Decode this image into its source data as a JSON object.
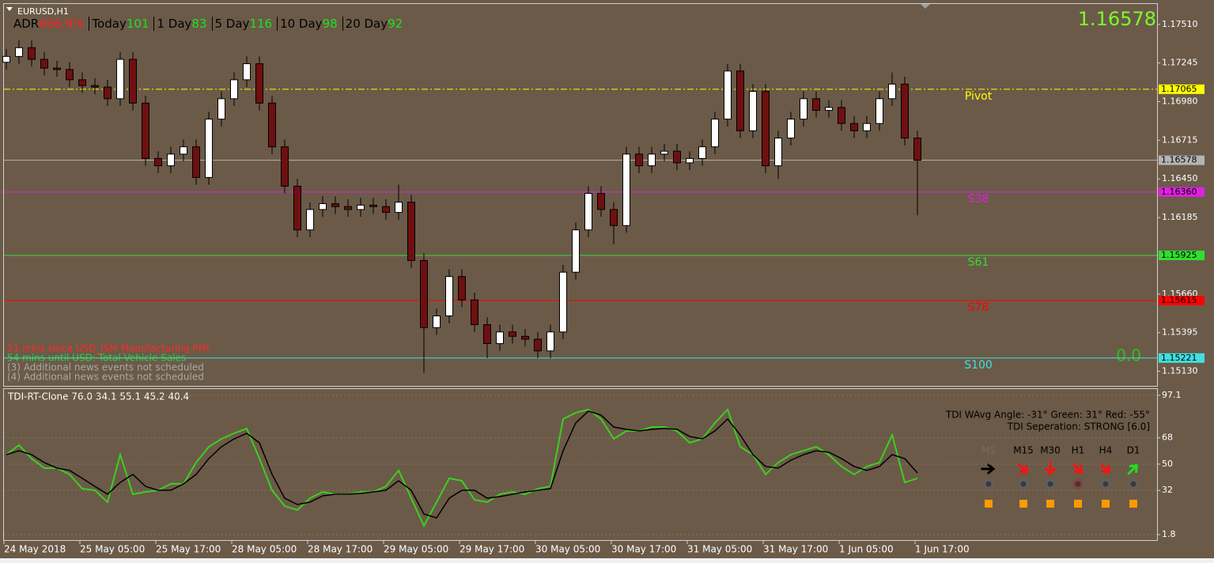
{
  "symbol": "EURUSD,H1",
  "adr": [
    {
      "label": "ADR",
      "value": 606.9,
      "value_label": "606.9%",
      "color": "#ff2020"
    },
    {
      "label": "Today",
      "value": 101,
      "color": "#20e020"
    },
    {
      "label": "1 Day",
      "value": 83,
      "color": "#20e020"
    },
    {
      "label": "5 Day",
      "value": 116,
      "color": "#20e020"
    },
    {
      "label": "10 Day",
      "value": 98,
      "color": "#20e020"
    },
    {
      "label": "20 Day",
      "value": 92,
      "color": "#20e020"
    }
  ],
  "price_display": "1.16578",
  "zero_display": "0.0",
  "news": [
    {
      "text": "21 mins since USD_ISM Manufacturing PMI",
      "color": "#ff2a2a"
    },
    {
      "text": "54 mins until USD: Total Vehicle Sales",
      "color": "#30d030"
    },
    {
      "text": "(3)  Additional news events not scheduled",
      "color": "#a8a8a8"
    },
    {
      "text": "(4)  Additional news events not scheduled",
      "color": "#a8a8a8"
    }
  ],
  "tdi_info": [
    "TDI WAvg Angle: -31°  Green: 31°  Red: -55°",
    "TDI Seperation: STRONG [6.0]"
  ],
  "timeframes": [
    {
      "label": "M5",
      "color": "#7a6a58"
    },
    {
      "label": "M15",
      "color": "#000000"
    },
    {
      "label": "M30",
      "color": "#000000"
    },
    {
      "label": "H1",
      "color": "#000000"
    },
    {
      "label": "H4",
      "color": "#000000"
    },
    {
      "label": "D1",
      "color": "#000000"
    }
  ],
  "chart_data": [
    {
      "type": "candlestick",
      "up_color": "#ffffff",
      "down_color": "#6e1010",
      "open": [
        1.1725,
        1.1729,
        1.1735,
        1.1727,
        1.1721,
        1.172,
        1.1713,
        1.1709,
        1.1708,
        1.17,
        1.1727,
        1.1697,
        1.1659,
        1.1654,
        1.1662,
        1.1667,
        1.1646,
        1.1686,
        1.17,
        1.1713,
        1.1724,
        1.1697,
        1.1667,
        1.164,
        1.161,
        1.1624,
        1.1628,
        1.1626,
        1.1624,
        1.1627,
        1.1626,
        1.1622,
        1.1629,
        1.1589,
        1.1543,
        1.1551,
        1.1578,
        1.1562,
        1.1545,
        1.1532,
        1.154,
        1.1537,
        1.1535,
        1.1527,
        1.154,
        1.1581,
        1.161,
        1.1635,
        1.1624,
        1.1613,
        1.1662,
        1.1654,
        1.1662,
        1.1664,
        1.1656,
        1.1659,
        1.1667,
        1.1686,
        1.1719,
        1.1678,
        1.1705,
        1.1654,
        1.1673,
        1.1686,
        1.17,
        1.1692,
        1.1694,
        1.1683,
        1.1678,
        1.1683,
        1.17,
        1.171,
        1.1673
      ],
      "high": [
        1.1734,
        1.174,
        1.174,
        1.1732,
        1.1726,
        1.1725,
        1.1718,
        1.1714,
        1.1713,
        1.1732,
        1.1732,
        1.1702,
        1.1664,
        1.1667,
        1.1672,
        1.1672,
        1.1691,
        1.1705,
        1.1718,
        1.1729,
        1.1729,
        1.1702,
        1.1672,
        1.1645,
        1.1629,
        1.1633,
        1.1633,
        1.1631,
        1.1632,
        1.1632,
        1.1631,
        1.1641,
        1.1634,
        1.1594,
        1.1556,
        1.1583,
        1.1583,
        1.1567,
        1.155,
        1.1545,
        1.1545,
        1.1542,
        1.154,
        1.1545,
        1.1586,
        1.1615,
        1.164,
        1.164,
        1.1629,
        1.1667,
        1.1667,
        1.1667,
        1.1669,
        1.1669,
        1.1664,
        1.1672,
        1.1691,
        1.1724,
        1.1724,
        1.171,
        1.171,
        1.1678,
        1.1691,
        1.1705,
        1.1705,
        1.1699,
        1.1699,
        1.1688,
        1.1688,
        1.1705,
        1.1718,
        1.1715,
        1.1678
      ],
      "low": [
        1.172,
        1.1724,
        1.1722,
        1.1716,
        1.1715,
        1.1708,
        1.1704,
        1.1703,
        1.1695,
        1.1695,
        1.1692,
        1.1654,
        1.1649,
        1.1649,
        1.1657,
        1.1641,
        1.1641,
        1.1681,
        1.1695,
        1.1708,
        1.1692,
        1.1662,
        1.1635,
        1.1605,
        1.1605,
        1.1619,
        1.1621,
        1.1619,
        1.1619,
        1.1621,
        1.1617,
        1.1617,
        1.1584,
        1.1512,
        1.1538,
        1.1546,
        1.1557,
        1.154,
        1.1522,
        1.1527,
        1.1532,
        1.153,
        1.1522,
        1.1522,
        1.1535,
        1.1576,
        1.1605,
        1.1619,
        1.16,
        1.1608,
        1.1649,
        1.1649,
        1.1657,
        1.1651,
        1.1651,
        1.1654,
        1.1662,
        1.1681,
        1.1673,
        1.1673,
        1.1649,
        1.1645,
        1.1668,
        1.1681,
        1.1687,
        1.1687,
        1.1678,
        1.1673,
        1.1673,
        1.1678,
        1.1695,
        1.1668,
        1.162
      ],
      "close": [
        1.1729,
        1.1735,
        1.1727,
        1.1721,
        1.172,
        1.1713,
        1.1709,
        1.1708,
        1.17,
        1.1727,
        1.1697,
        1.1659,
        1.1654,
        1.1662,
        1.1667,
        1.1646,
        1.1686,
        1.17,
        1.1713,
        1.1724,
        1.1697,
        1.1667,
        1.164,
        1.161,
        1.1624,
        1.1628,
        1.1626,
        1.1624,
        1.1627,
        1.1626,
        1.1622,
        1.1629,
        1.1589,
        1.1543,
        1.1551,
        1.1578,
        1.1562,
        1.1545,
        1.1532,
        1.154,
        1.1537,
        1.1535,
        1.1527,
        1.154,
        1.1581,
        1.161,
        1.1635,
        1.1624,
        1.1613,
        1.1662,
        1.1654,
        1.1662,
        1.1664,
        1.1656,
        1.1659,
        1.1667,
        1.1686,
        1.1719,
        1.1678,
        1.1705,
        1.1654,
        1.1673,
        1.1686,
        1.17,
        1.1692,
        1.1694,
        1.1683,
        1.1678,
        1.1683,
        1.17,
        1.171,
        1.1673,
        1.16578
      ],
      "ylim": [
        1.1503,
        1.1765
      ],
      "yticks": [
        {
          "value": 1.1751,
          "label": "1.17510"
        },
        {
          "value": 1.17245,
          "label": "1.17245"
        },
        {
          "value": 1.1698,
          "label": "1.16980"
        },
        {
          "value": 1.16715,
          "label": "1.16715"
        },
        {
          "value": 1.1645,
          "label": "1.16450"
        },
        {
          "value": 1.16185,
          "label": "1.16185"
        },
        {
          "value": 1.1566,
          "label": "1.15660"
        },
        {
          "value": 1.15395,
          "label": "1.15395"
        },
        {
          "value": 1.1513,
          "label": "1.15130"
        }
      ],
      "levels": [
        {
          "name": "Pivot",
          "value": 1.17065,
          "label": "1.17065",
          "color": "#ffff00",
          "dashed": true
        },
        {
          "value": 1.16578,
          "label": "1.16578",
          "color": "#b4b4b4"
        },
        {
          "name": "S38",
          "value": 1.1636,
          "label": "1.16360",
          "color": "#e020e0"
        },
        {
          "name": "S61",
          "value": 1.15925,
          "label": "1.15925",
          "color": "#30e030"
        },
        {
          "name": "S78",
          "value": 1.15615,
          "label": "1.15615",
          "color": "#ff0000"
        },
        {
          "name": "S100",
          "value": 1.15221,
          "label": "1.15221",
          "color": "#40e0e0"
        }
      ]
    },
    {
      "type": "line",
      "title": "TDI-RT-Clone 76.0 34.1 55.1 45.2 40.4",
      "categories": [
        "24 May 2018",
        null,
        null,
        null,
        null,
        null,
        "25 May 05:00",
        null,
        null,
        null,
        null,
        null,
        "25 May 17:00",
        null,
        null,
        null,
        null,
        null,
        "28 May 05:00",
        null,
        null,
        null,
        null,
        null,
        "28 May 17:00",
        null,
        null,
        null,
        null,
        null,
        "29 May 05:00",
        null,
        null,
        null,
        null,
        null,
        "29 May 17:00",
        null,
        null,
        null,
        null,
        null,
        "30 May 05:00",
        null,
        null,
        null,
        null,
        null,
        "30 May 17:00",
        null,
        null,
        null,
        null,
        null,
        "31 May 05:00",
        null,
        null,
        null,
        null,
        null,
        "31 May 17:00",
        null,
        null,
        null,
        null,
        null,
        "1 Jun 05:00",
        null,
        null,
        null,
        null,
        null,
        "1 Jun 17:00"
      ],
      "series": [
        {
          "color": "#3ccf1f",
          "values": [
            56.5,
            63.0,
            53.8,
            47.3,
            47.3,
            43.0,
            33.2,
            32.1,
            24.0,
            56.5,
            29.4,
            31.0,
            32.1,
            36.5,
            36.5,
            51.1,
            61.9,
            67.3,
            71.1,
            74.4,
            53.8,
            32.1,
            21.3,
            18.6,
            26.7,
            31.0,
            29.4,
            29.4,
            31.0,
            31.0,
            34.8,
            45.7,
            26.7,
            7.8,
            24.0,
            40.3,
            38.6,
            25.6,
            24.0,
            29.4,
            31.0,
            29.4,
            33.2,
            34.8,
            80.9,
            85.2,
            87.4,
            80.9,
            67.3,
            72.7,
            72.7,
            75.4,
            75.4,
            72.7,
            64.6,
            67.3,
            78.2,
            87.4,
            61.9,
            56.5,
            43.0,
            51.1,
            56.5,
            59.2,
            61.9,
            56.5,
            48.4,
            43.0,
            48.4,
            51.1,
            70.0,
            37.5,
            40.3
          ]
        },
        {
          "color": "#000000",
          "values": [
            56.5,
            59.2,
            56.5,
            51.1,
            47.3,
            45.7,
            40.3,
            34.8,
            29.4,
            37.5,
            43.0,
            34.8,
            32.1,
            32.1,
            36.5,
            43.0,
            53.8,
            61.9,
            67.3,
            71.1,
            64.6,
            43.0,
            26.7,
            22.4,
            24.0,
            28.3,
            29.4,
            29.4,
            30.0,
            31.0,
            32.1,
            38.6,
            32.1,
            15.9,
            13.2,
            26.7,
            32.1,
            32.1,
            26.7,
            27.8,
            29.4,
            31.0,
            32.1,
            33.2,
            59.2,
            78.2,
            86.3,
            83.6,
            75.4,
            73.8,
            72.7,
            73.8,
            74.4,
            73.8,
            68.9,
            67.3,
            72.7,
            80.9,
            70.0,
            56.5,
            48.4,
            47.3,
            52.7,
            56.5,
            59.2,
            58.1,
            53.8,
            48.4,
            45.7,
            48.4,
            56.5,
            53.8,
            44.0
          ]
        }
      ],
      "ylim": [
        -2.5,
        101.4
      ],
      "yticks": [
        97.1,
        68,
        50,
        32,
        1.8
      ],
      "grid": true
    }
  ]
}
